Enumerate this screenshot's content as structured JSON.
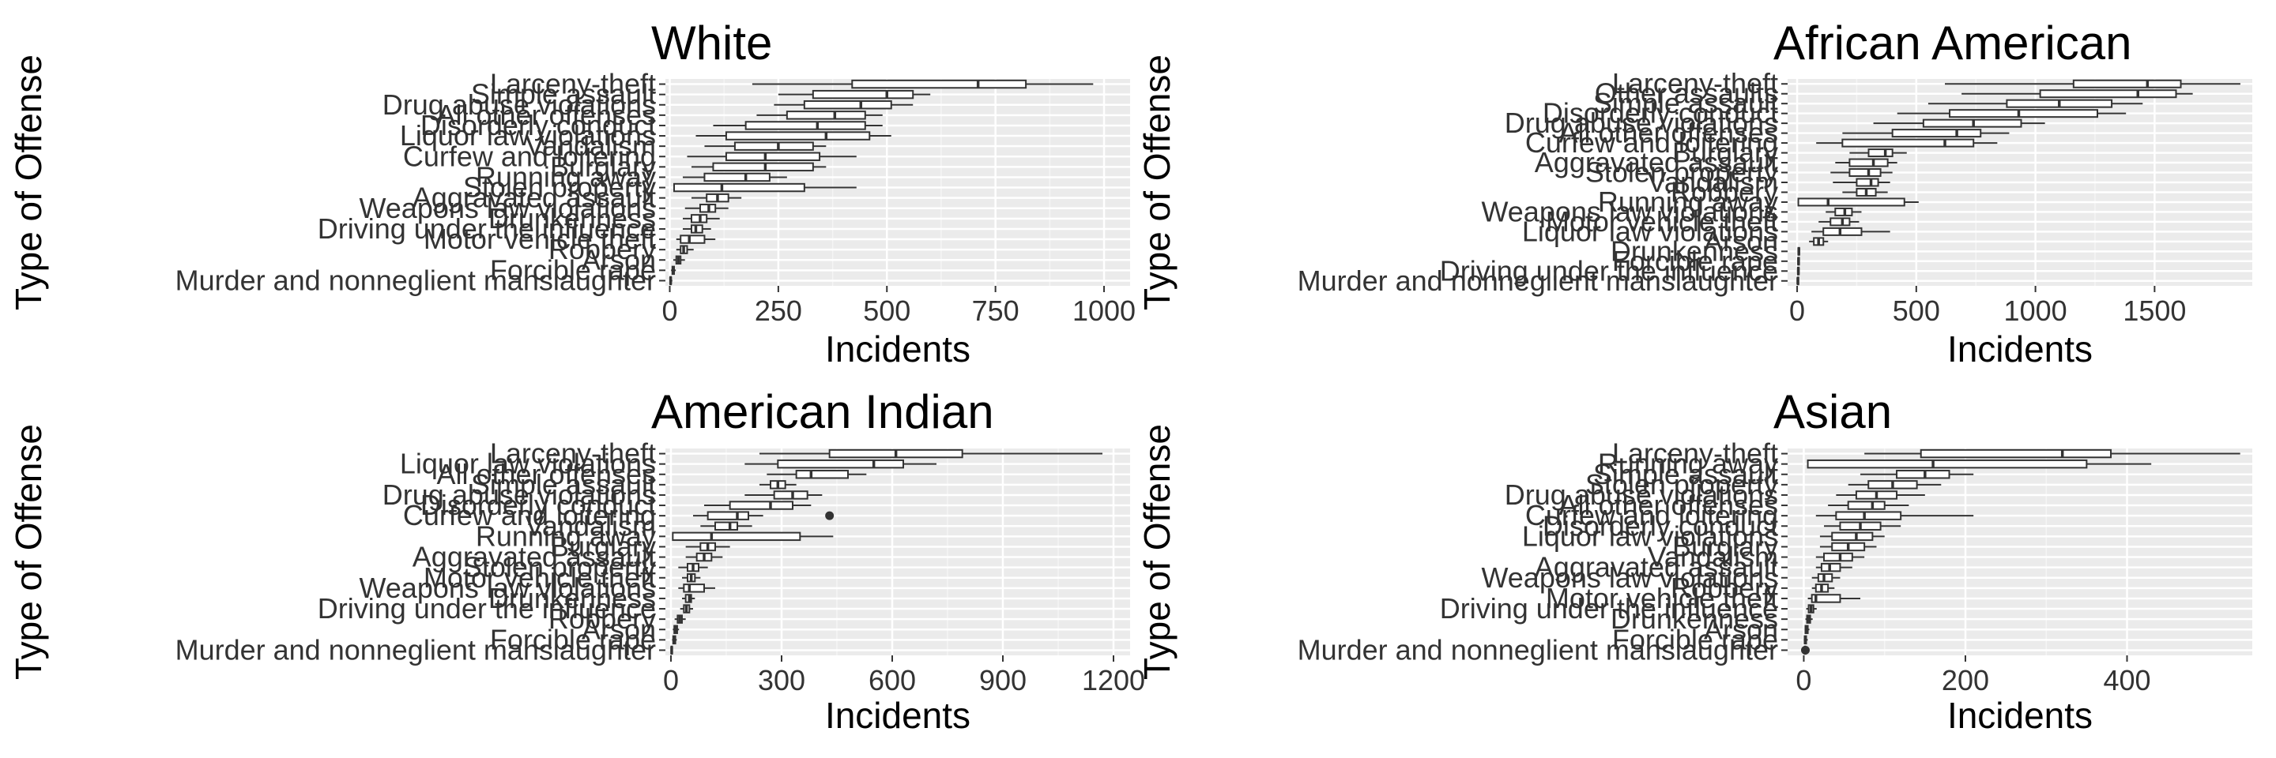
{
  "figure": {
    "y_axis_title": "Type of Offense",
    "x_axis_title": "Incidents"
  },
  "chart_data": [
    {
      "type": "boxplot",
      "title": "White",
      "xlabel": "Incidents",
      "ylabel": "Type of Offense",
      "xlim": [
        -10,
        1060
      ],
      "xticks": [
        0,
        250,
        500,
        750,
        1000
      ],
      "xtick_labels": [
        "0",
        "250",
        "500",
        "750",
        "1000"
      ],
      "categories": [
        "Larceny-theft",
        "Simple assault",
        "Drug abuse violations",
        "All other offenses",
        "Disorderly conduct",
        "Liquor law violations",
        "Vandalism",
        "Curfew and loitering",
        "Burglary",
        "Running away",
        "Stolen property",
        "Aggravated assault",
        "Weapons law violations",
        "Drunkenness",
        "Driving under the influence",
        "Motor vehicle theft",
        "Robbery",
        "Arson",
        "Forcible rape",
        "Murder and nonneglient manslaughter"
      ],
      "boxes": [
        {
          "min": 190,
          "q1": 420,
          "median": 710,
          "q3": 820,
          "max": 975,
          "outliers": []
        },
        {
          "min": 250,
          "q1": 330,
          "median": 500,
          "q3": 560,
          "max": 600,
          "outliers": []
        },
        {
          "min": 240,
          "q1": 310,
          "median": 440,
          "q3": 510,
          "max": 560,
          "outliers": []
        },
        {
          "min": 200,
          "q1": 270,
          "median": 380,
          "q3": 450,
          "max": 490,
          "outliers": []
        },
        {
          "min": 100,
          "q1": 175,
          "median": 340,
          "q3": 450,
          "max": 490,
          "outliers": []
        },
        {
          "min": 60,
          "q1": 130,
          "median": 360,
          "q3": 460,
          "max": 510,
          "outliers": []
        },
        {
          "min": 80,
          "q1": 150,
          "median": 250,
          "q3": 330,
          "max": 360,
          "outliers": []
        },
        {
          "min": 40,
          "q1": 130,
          "median": 220,
          "q3": 345,
          "max": 430,
          "outliers": []
        },
        {
          "min": 50,
          "q1": 100,
          "median": 220,
          "q3": 330,
          "max": 360,
          "outliers": []
        },
        {
          "min": 30,
          "q1": 80,
          "median": 175,
          "q3": 230,
          "max": 270,
          "outliers": []
        },
        {
          "min": 10,
          "q1": 10,
          "median": 120,
          "q3": 310,
          "max": 430,
          "outliers": []
        },
        {
          "min": 50,
          "q1": 85,
          "median": 110,
          "q3": 135,
          "max": 165,
          "outliers": []
        },
        {
          "min": 35,
          "q1": 70,
          "median": 90,
          "q3": 105,
          "max": 135,
          "outliers": []
        },
        {
          "min": 30,
          "q1": 50,
          "median": 70,
          "q3": 85,
          "max": 115,
          "outliers": []
        },
        {
          "min": 30,
          "q1": 50,
          "median": 60,
          "q3": 75,
          "max": 95,
          "outliers": []
        },
        {
          "min": 15,
          "q1": 25,
          "median": 45,
          "q3": 80,
          "max": 105,
          "outliers": []
        },
        {
          "min": 15,
          "q1": 25,
          "median": 32,
          "q3": 40,
          "max": 55,
          "outliers": []
        },
        {
          "min": 8,
          "q1": 15,
          "median": 20,
          "q3": 25,
          "max": 35,
          "outliers": []
        },
        {
          "min": 3,
          "q1": 6,
          "median": 8,
          "q3": 10,
          "max": 14,
          "outliers": []
        },
        {
          "min": 0,
          "q1": 1,
          "median": 2,
          "q3": 3,
          "max": 6,
          "outliers": []
        }
      ]
    },
    {
      "type": "boxplot",
      "title": "African American",
      "xlabel": "Incidents",
      "ylabel": "Type of Offense",
      "xlim": [
        -40,
        1910
      ],
      "xticks": [
        0,
        500,
        1000,
        1500
      ],
      "xtick_labels": [
        "0",
        "500",
        "1000",
        "1500"
      ],
      "categories": [
        "Larceny-theft",
        "Other assaults",
        "Simple assault",
        "Disorderly conduct",
        "Drug abuse violations",
        "All other offenses",
        "Curfew and loitering",
        "Burglary",
        "Aggravated assault",
        "Stolen property",
        "Vandalism",
        "Robbery",
        "Running away",
        "Weapons law violations",
        "Motor vehicle theft",
        "Liquor law violations",
        "Arson",
        "Drunkenness",
        "Forcible rape",
        "Driving under the influence",
        "Murder and nonneglient manslaughter"
      ],
      "boxes": [
        {
          "min": 620,
          "q1": 1160,
          "median": 1470,
          "q3": 1610,
          "max": 1860,
          "outliers": []
        },
        {
          "min": 690,
          "q1": 1020,
          "median": 1430,
          "q3": 1590,
          "max": 1660,
          "outliers": []
        },
        {
          "min": 550,
          "q1": 880,
          "median": 1100,
          "q3": 1320,
          "max": 1450,
          "outliers": []
        },
        {
          "min": 420,
          "q1": 640,
          "median": 930,
          "q3": 1260,
          "max": 1380,
          "outliers": []
        },
        {
          "min": 320,
          "q1": 530,
          "median": 740,
          "q3": 940,
          "max": 1040,
          "outliers": []
        },
        {
          "min": 190,
          "q1": 400,
          "median": 670,
          "q3": 770,
          "max": 890,
          "outliers": []
        },
        {
          "min": 80,
          "q1": 190,
          "median": 620,
          "q3": 740,
          "max": 840,
          "outliers": []
        },
        {
          "min": 220,
          "q1": 300,
          "median": 370,
          "q3": 400,
          "max": 460,
          "outliers": []
        },
        {
          "min": 160,
          "q1": 220,
          "median": 320,
          "q3": 380,
          "max": 420,
          "outliers": []
        },
        {
          "min": 140,
          "q1": 220,
          "median": 300,
          "q3": 350,
          "max": 400,
          "outliers": []
        },
        {
          "min": 150,
          "q1": 250,
          "median": 310,
          "q3": 340,
          "max": 390,
          "outliers": []
        },
        {
          "min": 190,
          "q1": 250,
          "median": 290,
          "q3": 330,
          "max": 380,
          "outliers": []
        },
        {
          "min": 5,
          "q1": 5,
          "median": 130,
          "q3": 450,
          "max": 510,
          "outliers": []
        },
        {
          "min": 120,
          "q1": 160,
          "median": 200,
          "q3": 230,
          "max": 270,
          "outliers": []
        },
        {
          "min": 90,
          "q1": 140,
          "median": 190,
          "q3": 220,
          "max": 260,
          "outliers": []
        },
        {
          "min": 60,
          "q1": 110,
          "median": 180,
          "q3": 270,
          "max": 390,
          "outliers": []
        },
        {
          "min": 50,
          "q1": 70,
          "median": 90,
          "q3": 110,
          "max": 130,
          "outliers": []
        },
        {
          "min": 3,
          "q1": 5,
          "median": 7,
          "q3": 9,
          "max": 12,
          "outliers": []
        },
        {
          "min": 2,
          "q1": 4,
          "median": 6,
          "q3": 8,
          "max": 11,
          "outliers": []
        },
        {
          "min": 1,
          "q1": 3,
          "median": 5,
          "q3": 7,
          "max": 10,
          "outliers": []
        },
        {
          "min": 0,
          "q1": 2,
          "median": 3,
          "q3": 5,
          "max": 8,
          "outliers": []
        }
      ]
    },
    {
      "type": "boxplot",
      "title": "American Indian",
      "xlabel": "Incidents",
      "ylabel": "Type of Offense",
      "xlim": [
        -15,
        1245
      ],
      "xticks": [
        0,
        300,
        600,
        900,
        1200
      ],
      "xtick_labels": [
        "0",
        "300",
        "600",
        "900",
        "1200"
      ],
      "categories": [
        "Larceny-theft",
        "Liquor law violations",
        "All other offenses",
        "Simple assault",
        "Drug abuse violations",
        "Disorderly conduct",
        "Curfew and loitering",
        "Vandalism",
        "Running away",
        "Burglary",
        "Aggravated assault",
        "Stolen property",
        "Motor vehicle theft",
        "Weapons law violations",
        "Drunkenness",
        "Driving under the influence",
        "Robbery",
        "Arson",
        "Forcible rape",
        "Murder and nonneglient manslaughter"
      ],
      "boxes": [
        {
          "min": 240,
          "q1": 430,
          "median": 610,
          "q3": 790,
          "max": 1170,
          "outliers": []
        },
        {
          "min": 200,
          "q1": 290,
          "median": 550,
          "q3": 630,
          "max": 720,
          "outliers": []
        },
        {
          "min": 260,
          "q1": 340,
          "median": 380,
          "q3": 480,
          "max": 530,
          "outliers": []
        },
        {
          "min": 240,
          "q1": 270,
          "median": 290,
          "q3": 310,
          "max": 340,
          "outliers": []
        },
        {
          "min": 200,
          "q1": 280,
          "median": 330,
          "q3": 370,
          "max": 410,
          "outliers": []
        },
        {
          "min": 90,
          "q1": 160,
          "median": 270,
          "q3": 330,
          "max": 380,
          "outliers": []
        },
        {
          "min": 60,
          "q1": 100,
          "median": 180,
          "q3": 210,
          "max": 250,
          "outliers": [
            430
          ]
        },
        {
          "min": 80,
          "q1": 120,
          "median": 160,
          "q3": 180,
          "max": 220,
          "outliers": []
        },
        {
          "min": 5,
          "q1": 5,
          "median": 110,
          "q3": 350,
          "max": 440,
          "outliers": []
        },
        {
          "min": 40,
          "q1": 80,
          "median": 100,
          "q3": 120,
          "max": 160,
          "outliers": []
        },
        {
          "min": 40,
          "q1": 70,
          "median": 90,
          "q3": 110,
          "max": 140,
          "outliers": []
        },
        {
          "min": 20,
          "q1": 45,
          "median": 60,
          "q3": 75,
          "max": 100,
          "outliers": []
        },
        {
          "min": 30,
          "q1": 45,
          "median": 55,
          "q3": 65,
          "max": 80,
          "outliers": []
        },
        {
          "min": 20,
          "q1": 35,
          "median": 50,
          "q3": 90,
          "max": 120,
          "outliers": []
        },
        {
          "min": 30,
          "q1": 40,
          "median": 50,
          "q3": 55,
          "max": 65,
          "outliers": []
        },
        {
          "min": 25,
          "q1": 35,
          "median": 42,
          "q3": 50,
          "max": 60,
          "outliers": []
        },
        {
          "min": 10,
          "q1": 18,
          "median": 24,
          "q3": 30,
          "max": 40,
          "outliers": []
        },
        {
          "min": 5,
          "q1": 9,
          "median": 13,
          "q3": 17,
          "max": 22,
          "outliers": []
        },
        {
          "min": 3,
          "q1": 6,
          "median": 9,
          "q3": 12,
          "max": 16,
          "outliers": []
        },
        {
          "min": 0,
          "q1": 1,
          "median": 2,
          "q3": 3,
          "max": 5,
          "outliers": []
        }
      ]
    },
    {
      "type": "boxplot",
      "title": "Asian",
      "xlabel": "Incidents",
      "ylabel": "Type of Offense",
      "xlim": [
        -20,
        555
      ],
      "xticks": [
        0,
        200,
        400
      ],
      "xtick_labels": [
        "0",
        "200",
        "400"
      ],
      "categories": [
        "Larceny-theft",
        "Running away",
        "Simple assault",
        "Stolen property",
        "Drug abuse violations",
        "All other offenses",
        "Curfew and loitering",
        "Disorderly conduct",
        "Liquor law violations",
        "Burglary",
        "Vandalism",
        "Aggravated assault",
        "Weapons law violations",
        "Robbery",
        "Motor vehicle theft",
        "Driving under the influence",
        "Drunkenness",
        "Arson",
        "Forcible rape",
        "Murder and nonneglient manslaughter"
      ],
      "boxes": [
        {
          "min": 75,
          "q1": 145,
          "median": 320,
          "q3": 380,
          "max": 540,
          "outliers": []
        },
        {
          "min": 5,
          "q1": 5,
          "median": 160,
          "q3": 350,
          "max": 430,
          "outliers": []
        },
        {
          "min": 70,
          "q1": 115,
          "median": 150,
          "q3": 180,
          "max": 210,
          "outliers": []
        },
        {
          "min": 55,
          "q1": 80,
          "median": 110,
          "q3": 140,
          "max": 170,
          "outliers": []
        },
        {
          "min": 40,
          "q1": 65,
          "median": 90,
          "q3": 115,
          "max": 150,
          "outliers": []
        },
        {
          "min": 30,
          "q1": 55,
          "median": 85,
          "q3": 100,
          "max": 130,
          "outliers": []
        },
        {
          "min": 15,
          "q1": 40,
          "median": 75,
          "q3": 120,
          "max": 210,
          "outliers": []
        },
        {
          "min": 25,
          "q1": 45,
          "median": 70,
          "q3": 95,
          "max": 120,
          "outliers": []
        },
        {
          "min": 20,
          "q1": 35,
          "median": 65,
          "q3": 85,
          "max": 100,
          "outliers": []
        },
        {
          "min": 20,
          "q1": 35,
          "median": 55,
          "q3": 75,
          "max": 90,
          "outliers": []
        },
        {
          "min": 15,
          "q1": 25,
          "median": 45,
          "q3": 60,
          "max": 75,
          "outliers": []
        },
        {
          "min": 15,
          "q1": 22,
          "median": 32,
          "q3": 45,
          "max": 60,
          "outliers": []
        },
        {
          "min": 10,
          "q1": 18,
          "median": 25,
          "q3": 35,
          "max": 45,
          "outliers": []
        },
        {
          "min": 10,
          "q1": 15,
          "median": 22,
          "q3": 30,
          "max": 38,
          "outliers": []
        },
        {
          "min": 5,
          "q1": 10,
          "median": 15,
          "q3": 45,
          "max": 70,
          "outliers": []
        },
        {
          "min": 3,
          "q1": 6,
          "median": 9,
          "q3": 12,
          "max": 16,
          "outliers": []
        },
        {
          "min": 2,
          "q1": 4,
          "median": 6,
          "q3": 8,
          "max": 11,
          "outliers": []
        },
        {
          "min": 1,
          "q1": 2,
          "median": 4,
          "q3": 5,
          "max": 7,
          "outliers": []
        },
        {
          "min": 0,
          "q1": 1,
          "median": 2,
          "q3": 3,
          "max": 5,
          "outliers": []
        },
        {
          "min": 0,
          "q1": 1,
          "median": 1,
          "q3": 2,
          "max": 3,
          "outliers": [
            2
          ]
        }
      ]
    }
  ]
}
